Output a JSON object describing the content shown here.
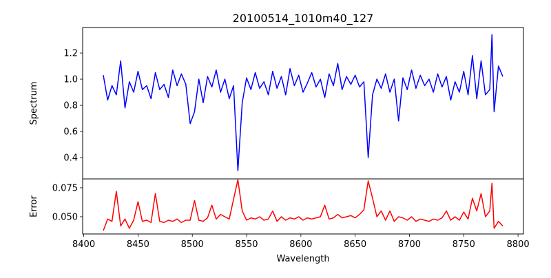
{
  "chart_data": [
    {
      "type": "line",
      "title": "20100514_1010m40_127",
      "xlabel": "",
      "ylabel": "Spectrum",
      "xlim": [
        8399,
        8805
      ],
      "ylim": [
        0.237,
        1.395
      ],
      "yticks": [
        0.4,
        0.6,
        0.8,
        1.0,
        1.2
      ],
      "ytick_labels": [
        "0.4",
        "0.6",
        "0.8",
        "1.0",
        "1.2"
      ],
      "color": "#0000ff",
      "x": [
        8418,
        8422,
        8426,
        8430,
        8434,
        8438,
        8442,
        8446,
        8450,
        8454,
        8458,
        8462,
        8466,
        8470,
        8474,
        8478,
        8482,
        8486,
        8490,
        8494,
        8498,
        8502,
        8506,
        8510,
        8514,
        8518,
        8522,
        8526,
        8530,
        8534,
        8538,
        8542,
        8546,
        8550,
        8554,
        8558,
        8562,
        8566,
        8570,
        8574,
        8578,
        8582,
        8586,
        8590,
        8594,
        8598,
        8602,
        8606,
        8610,
        8614,
        8618,
        8622,
        8626,
        8630,
        8634,
        8638,
        8642,
        8646,
        8650,
        8654,
        8658,
        8662,
        8666,
        8670,
        8674,
        8678,
        8682,
        8686,
        8690,
        8694,
        8698,
        8702,
        8706,
        8710,
        8714,
        8718,
        8722,
        8726,
        8730,
        8734,
        8738,
        8742,
        8746,
        8750,
        8754,
        8758,
        8762,
        8766,
        8770,
        8774,
        8776,
        8778,
        8782,
        8786
      ],
      "values": [
        1.03,
        0.84,
        0.95,
        0.88,
        1.14,
        0.78,
        0.98,
        0.9,
        1.06,
        0.92,
        0.95,
        0.85,
        1.05,
        0.92,
        0.96,
        0.86,
        1.07,
        0.95,
        1.04,
        0.96,
        0.66,
        0.75,
        1.0,
        0.82,
        1.02,
        0.94,
        1.07,
        0.9,
        1.0,
        0.85,
        0.95,
        0.3,
        0.82,
        1.01,
        0.92,
        1.05,
        0.93,
        0.98,
        0.88,
        1.06,
        0.93,
        1.02,
        0.88,
        1.08,
        0.95,
        1.03,
        0.9,
        0.97,
        1.05,
        0.94,
        1.0,
        0.86,
        1.04,
        0.95,
        1.12,
        0.92,
        1.02,
        0.96,
        1.03,
        0.94,
        0.98,
        0.4,
        0.88,
        1.0,
        0.93,
        1.04,
        0.9,
        1.0,
        0.68,
        1.01,
        0.92,
        1.07,
        0.93,
        1.03,
        0.95,
        1.0,
        0.9,
        1.04,
        0.94,
        1.02,
        0.84,
        0.98,
        0.9,
        1.06,
        0.88,
        1.18,
        0.85,
        1.14,
        0.88,
        0.92,
        1.34,
        0.75,
        1.1,
        1.02
      ]
    },
    {
      "type": "line",
      "title": "",
      "xlabel": "Wavelength",
      "ylabel": "Error",
      "xlim": [
        8399,
        8805
      ],
      "ylim": [
        0.0351,
        0.0827
      ],
      "xticks": [
        8400,
        8450,
        8500,
        8550,
        8600,
        8650,
        8700,
        8750,
        8800
      ],
      "xtick_labels": [
        "8400",
        "8450",
        "8500",
        "8550",
        "8600",
        "8650",
        "8700",
        "8750",
        "8800"
      ],
      "yticks": [
        0.05,
        0.075
      ],
      "ytick_labels": [
        "0.050",
        "0.075"
      ],
      "color": "#ff0000",
      "x": [
        8418,
        8422,
        8426,
        8430,
        8434,
        8438,
        8442,
        8446,
        8450,
        8454,
        8458,
        8462,
        8466,
        8470,
        8474,
        8478,
        8482,
        8486,
        8490,
        8494,
        8498,
        8502,
        8506,
        8510,
        8514,
        8518,
        8522,
        8526,
        8530,
        8534,
        8538,
        8542,
        8546,
        8550,
        8554,
        8558,
        8562,
        8566,
        8570,
        8574,
        8578,
        8582,
        8586,
        8590,
        8594,
        8598,
        8602,
        8606,
        8610,
        8614,
        8618,
        8622,
        8626,
        8630,
        8634,
        8638,
        8642,
        8646,
        8650,
        8654,
        8658,
        8662,
        8666,
        8670,
        8674,
        8678,
        8682,
        8686,
        8690,
        8694,
        8698,
        8702,
        8706,
        8710,
        8714,
        8718,
        8722,
        8726,
        8730,
        8734,
        8738,
        8742,
        8746,
        8750,
        8754,
        8758,
        8762,
        8766,
        8770,
        8774,
        8776,
        8778,
        8782,
        8786
      ],
      "values": [
        0.038,
        0.048,
        0.046,
        0.072,
        0.042,
        0.048,
        0.04,
        0.047,
        0.063,
        0.046,
        0.047,
        0.045,
        0.07,
        0.046,
        0.045,
        0.047,
        0.046,
        0.048,
        0.045,
        0.047,
        0.047,
        0.064,
        0.047,
        0.046,
        0.049,
        0.06,
        0.048,
        0.052,
        0.05,
        0.048,
        0.065,
        0.082,
        0.055,
        0.047,
        0.049,
        0.048,
        0.05,
        0.047,
        0.048,
        0.055,
        0.046,
        0.05,
        0.047,
        0.049,
        0.048,
        0.05,
        0.047,
        0.049,
        0.048,
        0.049,
        0.05,
        0.06,
        0.048,
        0.049,
        0.052,
        0.049,
        0.05,
        0.051,
        0.049,
        0.052,
        0.056,
        0.081,
        0.066,
        0.05,
        0.055,
        0.047,
        0.055,
        0.046,
        0.05,
        0.049,
        0.047,
        0.05,
        0.046,
        0.048,
        0.047,
        0.046,
        0.048,
        0.047,
        0.049,
        0.055,
        0.047,
        0.05,
        0.047,
        0.054,
        0.048,
        0.066,
        0.055,
        0.07,
        0.05,
        0.055,
        0.079,
        0.04,
        0.046,
        0.042
      ]
    }
  ]
}
